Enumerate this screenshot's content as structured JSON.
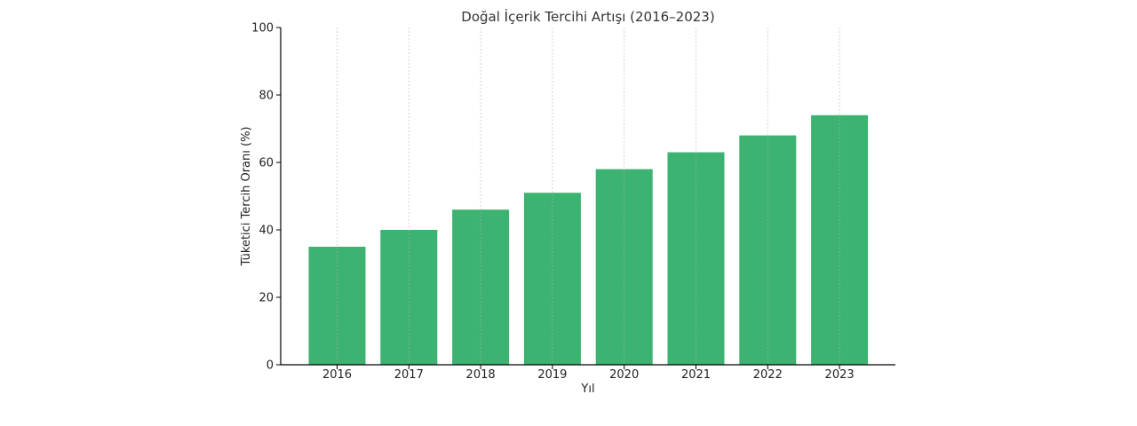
{
  "colors": {
    "bar": "#3cb371",
    "axis": "#000000",
    "grid": "#b0b0b0",
    "text": "#222222"
  },
  "chart_data": {
    "type": "bar",
    "title": "Doğal İçerik Tercihi Artışı (2016–2023)",
    "xlabel": "Yıl",
    "ylabel": "Tüketici Tercih Oranı (%)",
    "categories": [
      "2016",
      "2017",
      "2018",
      "2019",
      "2020",
      "2021",
      "2022",
      "2023"
    ],
    "values": [
      35,
      40,
      46,
      51,
      58,
      63,
      68,
      74
    ],
    "ylim": [
      0,
      100
    ],
    "yticks": [
      0,
      20,
      40,
      60,
      80,
      100
    ],
    "grid": "vertical dashed, x only",
    "legend": "none"
  }
}
